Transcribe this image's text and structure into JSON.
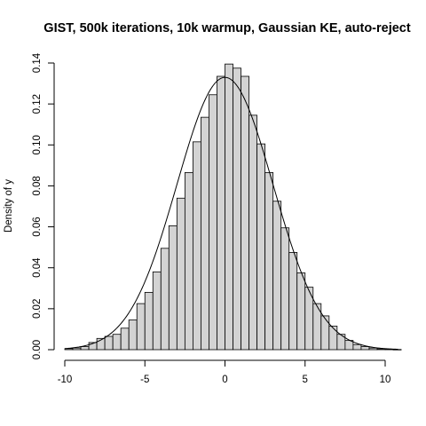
{
  "chart_data": {
    "type": "bar",
    "title": "GIST, 500k iterations, 10k warmup, Gaussian KE, auto-reject",
    "xlabel": "",
    "ylabel": "Density of y",
    "xlim": [
      -10,
      10
    ],
    "ylim": [
      0,
      0.14
    ],
    "x_ticks": [
      "-10",
      "-5",
      "0",
      "5",
      "10"
    ],
    "y_ticks": [
      "0.00",
      "0.02",
      "0.04",
      "0.06",
      "0.08",
      "0.10",
      "0.12",
      "0.14"
    ],
    "bin_width": 0.5,
    "bin_start": -10,
    "values": [
      0.0005,
      0.0008,
      0.0015,
      0.0035,
      0.0055,
      0.0065,
      0.0075,
      0.0105,
      0.0145,
      0.0225,
      0.028,
      0.038,
      0.0495,
      0.0605,
      0.074,
      0.0865,
      0.1015,
      0.1135,
      0.1245,
      0.1335,
      0.1395,
      0.1375,
      0.1335,
      0.1145,
      0.1005,
      0.0865,
      0.0725,
      0.0595,
      0.0475,
      0.0375,
      0.0305,
      0.0225,
      0.0165,
      0.0115,
      0.0075,
      0.0045,
      0.0025,
      0.0015,
      0.0008,
      0.0004,
      0.0002,
      0.0001
    ],
    "grid": false,
    "legend": false,
    "bar_fill": "#d3d3d3",
    "bar_stroke": "#000000",
    "curve": {
      "type": "normal-density",
      "mean": 0,
      "sd": 3,
      "color": "#000000"
    }
  }
}
